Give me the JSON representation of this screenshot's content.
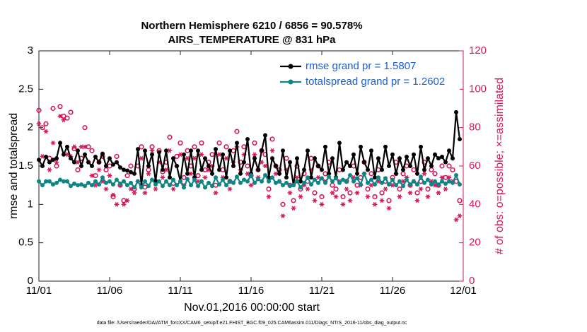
{
  "chart_data": {
    "type": "line",
    "title": "Northern Hemisphere 6210 / 6856 = 90.578%",
    "subtitle": "AIRS_TEMPERATURE @ 831 hPa",
    "x_label": "Nov.01,2016 00:00:00 start",
    "y_label": "rmse and totalspread",
    "y2_label": "# of obs: o=possible; ×=assimilated",
    "footnote": "data file: /Users/raeder/DAI/ATM_forcXX/CAM6_setup/f.e21.FHIST_BGC.f09_025.CAM6assim.011/Diags_NTrS_2016-11/obs_diag_output.nc",
    "legend": "upper right",
    "xlim": [
      0,
      30
    ],
    "xticks": [
      {
        "value": 0,
        "label": "11/01"
      },
      {
        "value": 5,
        "label": "11/06"
      },
      {
        "value": 10,
        "label": "11/11"
      },
      {
        "value": 15,
        "label": "11/16"
      },
      {
        "value": 20,
        "label": "11/21"
      },
      {
        "value": 25,
        "label": "11/26"
      },
      {
        "value": 30,
        "label": "12/01"
      }
    ],
    "ylim": [
      0,
      3
    ],
    "yticks": [
      0,
      {
        "value": 0.5,
        "label": "0.5"
      },
      1,
      {
        "value": 1.5,
        "label": "1.5"
      },
      2,
      {
        "value": 2.5,
        "label": "2.5"
      },
      3
    ],
    "y2lim": [
      0,
      120
    ],
    "y2ticks": [
      0,
      20,
      40,
      60,
      80,
      100,
      120
    ],
    "x": [
      0,
      0.25,
      0.5,
      0.75,
      1,
      1.25,
      1.5,
      1.75,
      2,
      2.25,
      2.5,
      2.75,
      3,
      3.25,
      3.5,
      3.75,
      4,
      4.25,
      4.5,
      4.75,
      5,
      5.25,
      5.5,
      5.75,
      6,
      6.25,
      6.5,
      6.75,
      7,
      7.25,
      7.5,
      7.75,
      8,
      8.25,
      8.5,
      8.75,
      9,
      9.25,
      9.5,
      9.75,
      10,
      10.25,
      10.5,
      10.75,
      11,
      11.25,
      11.5,
      11.75,
      12,
      12.25,
      12.5,
      12.75,
      13,
      13.25,
      13.5,
      13.75,
      14,
      14.25,
      14.5,
      14.75,
      15,
      15.25,
      15.5,
      15.75,
      16,
      16.25,
      16.5,
      16.75,
      17,
      17.25,
      17.5,
      17.75,
      18,
      18.25,
      18.5,
      18.75,
      19,
      19.25,
      19.5,
      19.75,
      20,
      20.25,
      20.5,
      20.75,
      21,
      21.25,
      21.5,
      21.75,
      22,
      22.25,
      22.5,
      22.75,
      23,
      23.25,
      23.5,
      23.75,
      24,
      24.25,
      24.5,
      24.75,
      25,
      25.25,
      25.5,
      25.75,
      26,
      26.25,
      26.5,
      26.75,
      27,
      27.25,
      27.5,
      27.75,
      28,
      28.25,
      28.5,
      28.75,
      29,
      29.25,
      29.5,
      29.75
    ],
    "series": [
      {
        "name": "rmse grand pr = 1.5807",
        "color": "#000000",
        "style": "line",
        "marker": "dot",
        "values": [
          1.58,
          1.5,
          1.62,
          1.55,
          1.58,
          1.6,
          1.8,
          1.65,
          1.75,
          1.6,
          1.55,
          1.7,
          1.5,
          1.65,
          1.55,
          1.5,
          1.62,
          1.55,
          1.66,
          1.5,
          1.6,
          1.52,
          1.55,
          1.48,
          1.45,
          1.44,
          1.42,
          1.4,
          1.72,
          1.25,
          1.7,
          1.5,
          1.65,
          1.3,
          1.68,
          1.45,
          1.7,
          1.35,
          1.6,
          1.5,
          1.3,
          1.65,
          1.4,
          1.7,
          1.35,
          1.7,
          1.45,
          1.6,
          1.5,
          1.4,
          1.72,
          1.45,
          1.65,
          1.35,
          1.7,
          1.5,
          1.8,
          1.4,
          1.55,
          1.85,
          1.4,
          1.6,
          1.45,
          1.7,
          1.9,
          1.35,
          1.6,
          1.5,
          1.4,
          1.7,
          1.35,
          1.55,
          1.25,
          1.6,
          1.3,
          1.45,
          1.7,
          1.35,
          1.6,
          1.5,
          1.45,
          1.75,
          1.4,
          1.6,
          1.35,
          1.8,
          1.45,
          1.55,
          1.5,
          1.65,
          1.4,
          1.75,
          1.55,
          1.45,
          1.7,
          1.35,
          1.6,
          1.45,
          1.75,
          1.5,
          1.65,
          1.4,
          1.6,
          1.45,
          1.62,
          1.5,
          1.65,
          1.4,
          1.75,
          1.45,
          1.6,
          1.5,
          1.65,
          1.6,
          1.62,
          1.55,
          1.7,
          1.6,
          2.2,
          1.85
        ]
      },
      {
        "name": "totalspread grand pr = 1.2602",
        "color": "#0e8585",
        "style": "line",
        "marker": "dot",
        "values": [
          1.3,
          1.25,
          1.3,
          1.3,
          1.26,
          1.28,
          1.32,
          1.3,
          1.3,
          1.24,
          1.27,
          1.25,
          1.26,
          1.24,
          1.28,
          1.25,
          1.3,
          1.26,
          1.35,
          1.28,
          1.3,
          1.26,
          1.32,
          1.27,
          1.3,
          1.25,
          1.28,
          1.22,
          1.3,
          1.22,
          1.3,
          1.24,
          1.32,
          1.26,
          1.3,
          1.24,
          1.3,
          1.25,
          1.32,
          1.25,
          1.3,
          1.22,
          1.33,
          1.25,
          1.32,
          1.24,
          1.3,
          1.22,
          1.28,
          1.24,
          1.35,
          1.26,
          1.32,
          1.25,
          1.3,
          1.28,
          1.36,
          1.28,
          1.32,
          1.3,
          1.38,
          1.28,
          1.33,
          1.3,
          1.38,
          1.3,
          1.35,
          1.28,
          1.3,
          1.25,
          1.28,
          1.24,
          1.25,
          1.3,
          1.22,
          1.28,
          1.35,
          1.26,
          1.32,
          1.28,
          1.34,
          1.28,
          1.36,
          1.3,
          1.34,
          1.28,
          1.32,
          1.3,
          1.38,
          1.3,
          1.34,
          1.26,
          1.4,
          1.28,
          1.32,
          1.26,
          1.35,
          1.28,
          1.34,
          1.26,
          1.32,
          1.25,
          1.3,
          1.24,
          1.32,
          1.26,
          1.3,
          1.26,
          1.36,
          1.28,
          1.32,
          1.26,
          1.3,
          1.26,
          1.3,
          1.27,
          1.3,
          1.28,
          1.38,
          1.26
        ]
      },
      {
        "color": "#d6185a",
        "style": "scatter",
        "marker": "circle",
        "axis": "y2",
        "values": [
          89,
          80,
          82,
          64,
          90,
          60,
          91,
          86,
          85,
          88,
          69,
          58,
          64,
          80,
          70,
          68,
          55,
          62,
          65,
          58,
          60,
          44,
          65,
          50,
          42,
          55,
          60,
          48,
          60,
          70,
          49,
          58,
          70,
          52,
          68,
          57,
          62,
          75,
          51,
          65,
          72,
          54,
          68,
          60,
          70,
          55,
          72,
          58,
          62,
          66,
          50,
          72,
          58,
          70,
          52,
          68,
          78,
          62,
          70,
          60,
          55,
          72,
          58,
          68,
          66,
          48,
          74,
          60,
          58,
          40,
          64,
          50,
          42,
          60,
          48,
          56,
          52,
          64,
          46,
          60,
          44,
          56,
          62,
          50,
          48,
          58,
          44,
          52,
          46,
          60,
          50,
          54,
          62,
          48,
          56,
          44,
          58,
          46,
          52,
          42,
          54,
          62,
          48,
          56,
          60,
          50,
          58,
          46,
          52,
          62,
          48,
          58,
          56,
          50,
          60,
          54,
          60,
          58,
          52,
          42
        ]
      },
      {
        "color": "#d6185a",
        "style": "scatter",
        "marker": "asterisk",
        "axis": "y2",
        "values": [
          82,
          65,
          78,
          58,
          72,
          62,
          86,
          84,
          66,
          65,
          70,
          62,
          70,
          70,
          62,
          55,
          50,
          58,
          52,
          48,
          55,
          45,
          40,
          50,
          40,
          42,
          48,
          46,
          52,
          64,
          46,
          56,
          68,
          48,
          62,
          54,
          58,
          68,
          48,
          60,
          66,
          50,
          64,
          56,
          64,
          52,
          66,
          54,
          58,
          60,
          46,
          66,
          54,
          64,
          48,
          62,
          70,
          58,
          66,
          56,
          50,
          66,
          54,
          62,
          60,
          44,
          68,
          56,
          52,
          34,
          58,
          46,
          38,
          54,
          44,
          50,
          48,
          58,
          42,
          54,
          40,
          52,
          56,
          46,
          44,
          52,
          40,
          48,
          42,
          54,
          46,
          50,
          56,
          44,
          50,
          40,
          52,
          42,
          48,
          38,
          50,
          56,
          44,
          52,
          54,
          46,
          52,
          42,
          48,
          56,
          44,
          52,
          50,
          46,
          54,
          48,
          54,
          52,
          32,
          34
        ]
      }
    ]
  }
}
